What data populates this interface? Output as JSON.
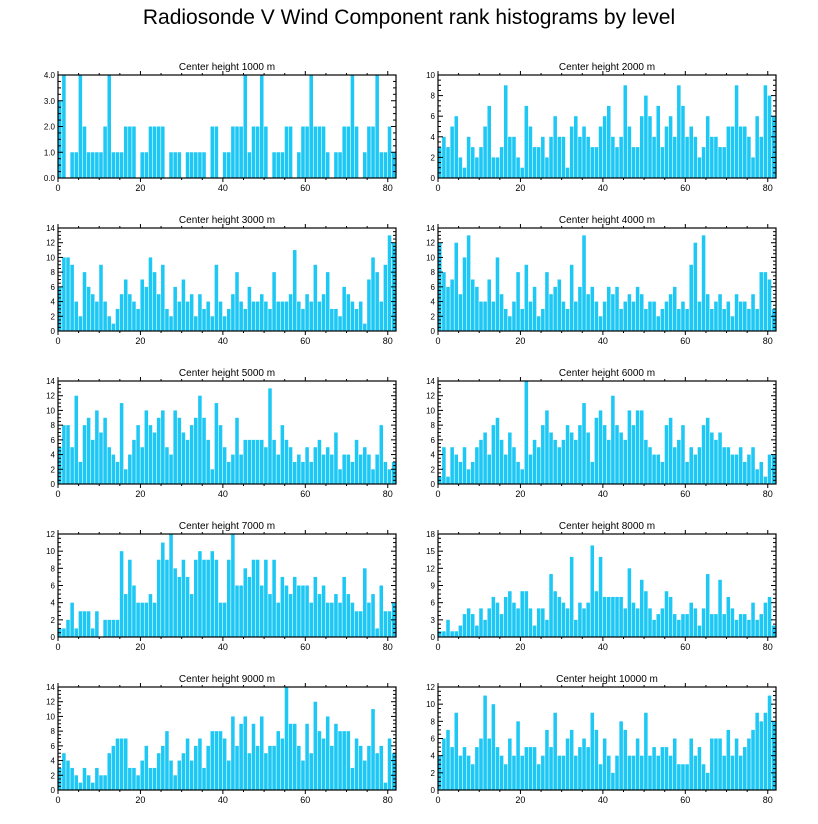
{
  "page_title": "Radiosonde V Wind Component rank histograms by level",
  "colors": {
    "bar": "#1ec8f5",
    "bar_edge": "#0aa9d9",
    "axis": "#000000",
    "background": "#ffffff"
  },
  "chart_data": [
    {
      "type": "bar",
      "title": "Center height 1000 m",
      "xlim": [
        0,
        82
      ],
      "ylim": [
        0,
        4
      ],
      "yticks": [
        "0.0",
        "1.0",
        "2.0",
        "3.0",
        "4.0"
      ],
      "xticks": [
        "0",
        "20",
        "40",
        "60",
        "80"
      ],
      "values": [
        3,
        4,
        0,
        1,
        1,
        4,
        2,
        1,
        1,
        1,
        1,
        2,
        4,
        1,
        1,
        1,
        2,
        2,
        2,
        0,
        1,
        1,
        2,
        2,
        2,
        2,
        0,
        1,
        1,
        1,
        0,
        1,
        1,
        1,
        1,
        1,
        0,
        2,
        2,
        0,
        1,
        1,
        2,
        2,
        2,
        4,
        1,
        2,
        2,
        4,
        2,
        0,
        1,
        1,
        1,
        2,
        2,
        0,
        1,
        2,
        2,
        4,
        2,
        2,
        2,
        1,
        0,
        1,
        1,
        2,
        2,
        4,
        2,
        0,
        1,
        2,
        2,
        4,
        1,
        1,
        2,
        1
      ]
    },
    {
      "type": "bar",
      "title": "Center height 2000 m",
      "xlim": [
        0,
        82
      ],
      "ylim": [
        0,
        10
      ],
      "yticks": [
        "0",
        "2",
        "4",
        "6",
        "8",
        "10"
      ],
      "xticks": [
        "0",
        "20",
        "40",
        "60",
        "80"
      ],
      "values": [
        3,
        4,
        3,
        5,
        6,
        2,
        1,
        4,
        3,
        2,
        3,
        5,
        7,
        2,
        2,
        3,
        9,
        4,
        4,
        2,
        1,
        7,
        5,
        3,
        3,
        4,
        2,
        4,
        6,
        4,
        4,
        1,
        5,
        6,
        4,
        5,
        4,
        3,
        3,
        5,
        6,
        7,
        4,
        3,
        4,
        9,
        5,
        3,
        3,
        6,
        8,
        6,
        4,
        7,
        3,
        5,
        6,
        4,
        9,
        7,
        4,
        5,
        4,
        2,
        3,
        6,
        4,
        4,
        3,
        3,
        5,
        5,
        9,
        5,
        5,
        4,
        2,
        6,
        4,
        9,
        8,
        6
      ]
    },
    {
      "type": "bar",
      "title": "Center height 3000 m",
      "xlim": [
        0,
        82
      ],
      "ylim": [
        0,
        14
      ],
      "yticks": [
        "0",
        "2",
        "4",
        "6",
        "8",
        "10",
        "12",
        "14"
      ],
      "xticks": [
        "0",
        "20",
        "40",
        "60",
        "80"
      ],
      "values": [
        6,
        10,
        10,
        9,
        4,
        2,
        8,
        6,
        5,
        4,
        9,
        4,
        2,
        1,
        3,
        5,
        7,
        5,
        4,
        3,
        7,
        6,
        10,
        8,
        5,
        9,
        3,
        2,
        6,
        4,
        7,
        4,
        5,
        2,
        5,
        3,
        4,
        2,
        9,
        4,
        2,
        3,
        5,
        8,
        4,
        3,
        6,
        4,
        4,
        5,
        4,
        3,
        8,
        4,
        4,
        4,
        5,
        11,
        4,
        3,
        5,
        4,
        9,
        4,
        5,
        8,
        3,
        3,
        2,
        6,
        5,
        4,
        3,
        4,
        1,
        7,
        10,
        8,
        4,
        9,
        13,
        12
      ]
    },
    {
      "type": "bar",
      "title": "Center height 4000 m",
      "xlim": [
        0,
        82
      ],
      "ylim": [
        0,
        14
      ],
      "yticks": [
        "0",
        "2",
        "4",
        "6",
        "8",
        "10",
        "12",
        "14"
      ],
      "xticks": [
        "0",
        "20",
        "40",
        "60",
        "80"
      ],
      "values": [
        12,
        8,
        6,
        7,
        12,
        5,
        10,
        13,
        7,
        6,
        4,
        4,
        7,
        4,
        10,
        5,
        3,
        2,
        4,
        8,
        3,
        9,
        4,
        6,
        2,
        3,
        8,
        5,
        6,
        7,
        4,
        3,
        9,
        4,
        6,
        13,
        5,
        6,
        4,
        2,
        4,
        6,
        5,
        6,
        3,
        4,
        5,
        4,
        6,
        5,
        3,
        4,
        4,
        2,
        3,
        4,
        5,
        6,
        3,
        4,
        3,
        9,
        12,
        4,
        13,
        5,
        3,
        4,
        5,
        3,
        4,
        2,
        5,
        4,
        4,
        3,
        5,
        3,
        8,
        8,
        7,
        3
      ]
    },
    {
      "type": "bar",
      "title": "Center height 5000 m",
      "xlim": [
        0,
        82
      ],
      "ylim": [
        0,
        14
      ],
      "yticks": [
        "0",
        "2",
        "4",
        "6",
        "8",
        "10",
        "12",
        "14"
      ],
      "xticks": [
        "0",
        "20",
        "40",
        "60",
        "80"
      ],
      "values": [
        5,
        8,
        8,
        5,
        12,
        3,
        8,
        9,
        6,
        10,
        7,
        9,
        5,
        4,
        3,
        11,
        2,
        4,
        6,
        8,
        5,
        10,
        8,
        7,
        9,
        10,
        5,
        4,
        10,
        9,
        7,
        6,
        8,
        9,
        12,
        9,
        6,
        2,
        11,
        8,
        5,
        3,
        4,
        9,
        4,
        6,
        6,
        6,
        6,
        6,
        5,
        13,
        6,
        4,
        8,
        6,
        5,
        3,
        4,
        3,
        5,
        3,
        5,
        6,
        4,
        5,
        4,
        7,
        2,
        4,
        4,
        3,
        6,
        4,
        5,
        4,
        2,
        4,
        8,
        3,
        2,
        3
      ]
    },
    {
      "type": "bar",
      "title": "Center height 6000 m",
      "xlim": [
        0,
        82
      ],
      "ylim": [
        0,
        14
      ],
      "yticks": [
        "0",
        "2",
        "4",
        "6",
        "8",
        "10",
        "12",
        "14"
      ],
      "xticks": [
        "0",
        "20",
        "40",
        "60",
        "80"
      ],
      "values": [
        1,
        5,
        1,
        5,
        4,
        3,
        5,
        2,
        3,
        5,
        6,
        7,
        4,
        8,
        9,
        6,
        4,
        7,
        5,
        3,
        2,
        14,
        4,
        6,
        5,
        8,
        10,
        7,
        6,
        5,
        6,
        8,
        7,
        6,
        8,
        11,
        7,
        3,
        9,
        10,
        8,
        6,
        12,
        8,
        7,
        6,
        10,
        8,
        10,
        10,
        6,
        5,
        4,
        4,
        3,
        8,
        9,
        5,
        6,
        8,
        3,
        5,
        4,
        5,
        8,
        9,
        7,
        6,
        7,
        5,
        5,
        4,
        4,
        5,
        3,
        4,
        5,
        2,
        3,
        1,
        4,
        4
      ]
    },
    {
      "type": "bar",
      "title": "Center height 7000 m",
      "xlim": [
        0,
        82
      ],
      "ylim": [
        0,
        12
      ],
      "yticks": [
        "0",
        "2",
        "4",
        "6",
        "8",
        "10",
        "12"
      ],
      "xticks": [
        "0",
        "20",
        "40",
        "60",
        "80"
      ],
      "values": [
        1,
        1,
        2,
        4,
        1,
        3,
        3,
        3,
        1,
        3,
        0,
        2,
        2,
        2,
        2,
        10,
        5,
        9,
        6,
        4,
        4,
        4,
        5,
        4,
        9,
        11,
        9,
        12,
        8,
        7,
        9,
        7,
        5,
        9,
        10,
        9,
        9,
        10,
        9,
        4,
        4,
        9,
        12,
        6,
        6,
        8,
        7,
        9,
        9,
        6,
        9,
        5,
        9,
        4,
        7,
        6,
        5,
        7,
        6,
        6,
        6,
        4,
        7,
        5,
        6,
        4,
        4,
        5,
        4,
        7,
        5,
        4,
        3,
        3,
        8,
        4,
        5,
        1,
        6,
        3,
        3,
        4
      ]
    },
    {
      "type": "bar",
      "title": "Center height 8000 m",
      "xlim": [
        0,
        82
      ],
      "ylim": [
        0,
        18
      ],
      "yticks": [
        "0",
        "3",
        "6",
        "9",
        "12",
        "15",
        "18"
      ],
      "xticks": [
        "0",
        "20",
        "40",
        "60",
        "80"
      ],
      "values": [
        1,
        1,
        3,
        1,
        1,
        2,
        4,
        5,
        4,
        2,
        5,
        3,
        5,
        7,
        6,
        4,
        7,
        8,
        6,
        5,
        8,
        8,
        5,
        2,
        5,
        5,
        3,
        11,
        8,
        7,
        6,
        5,
        14,
        3,
        6,
        5,
        6,
        16,
        8,
        14,
        7,
        7,
        7,
        7,
        7,
        5,
        12,
        6,
        5,
        10,
        8,
        5,
        3,
        4,
        5,
        8,
        7,
        4,
        3,
        4,
        4,
        6,
        5,
        2,
        5,
        11,
        4,
        4,
        10,
        4,
        7,
        5,
        3,
        4,
        4,
        3,
        6,
        3,
        4,
        6,
        7,
        2
      ]
    },
    {
      "type": "bar",
      "title": "Center height 9000 m",
      "xlim": [
        0,
        82
      ],
      "ylim": [
        0,
        14
      ],
      "yticks": [
        "0",
        "2",
        "4",
        "6",
        "8",
        "10",
        "12",
        "14"
      ],
      "xticks": [
        "0",
        "20",
        "40",
        "60",
        "80"
      ],
      "values": [
        3,
        5,
        4,
        3,
        2,
        1,
        3,
        2,
        1,
        3,
        2,
        2,
        5,
        6,
        7,
        7,
        7,
        3,
        3,
        2,
        4,
        6,
        3,
        3,
        5,
        6,
        8,
        4,
        2,
        4,
        5,
        7,
        4,
        6,
        7,
        3,
        6,
        8,
        8,
        8,
        7,
        4,
        10,
        6,
        9,
        10,
        5,
        9,
        6,
        10,
        5,
        6,
        6,
        8,
        7,
        14,
        9,
        9,
        6,
        4,
        9,
        5,
        12,
        8,
        7,
        10,
        6,
        9,
        8,
        8,
        8,
        3,
        7,
        6,
        4,
        6,
        11,
        5,
        6,
        1,
        7,
        5
      ]
    },
    {
      "type": "bar",
      "title": "Center height 10000 m",
      "xlim": [
        0,
        82
      ],
      "ylim": [
        0,
        12
      ],
      "yticks": [
        "0",
        "2",
        "4",
        "6",
        "8",
        "10",
        "12"
      ],
      "xticks": [
        "0",
        "20",
        "40",
        "60",
        "80"
      ],
      "values": [
        4,
        6,
        7,
        5,
        9,
        4,
        5,
        4,
        3,
        5,
        6,
        11,
        6,
        10,
        5,
        4,
        3,
        6,
        4,
        8,
        4,
        5,
        5,
        5,
        3,
        4,
        7,
        5,
        9,
        4,
        4,
        6,
        7,
        4,
        5,
        6,
        5,
        9,
        7,
        3,
        6,
        4,
        2,
        4,
        8,
        7,
        4,
        4,
        6,
        4,
        9,
        4,
        5,
        4,
        5,
        5,
        4,
        6,
        3,
        3,
        3,
        6,
        4,
        5,
        3,
        2,
        6,
        6,
        6,
        4,
        7,
        4,
        6,
        4,
        5,
        6,
        7,
        9,
        8,
        9,
        11,
        8
      ]
    }
  ]
}
